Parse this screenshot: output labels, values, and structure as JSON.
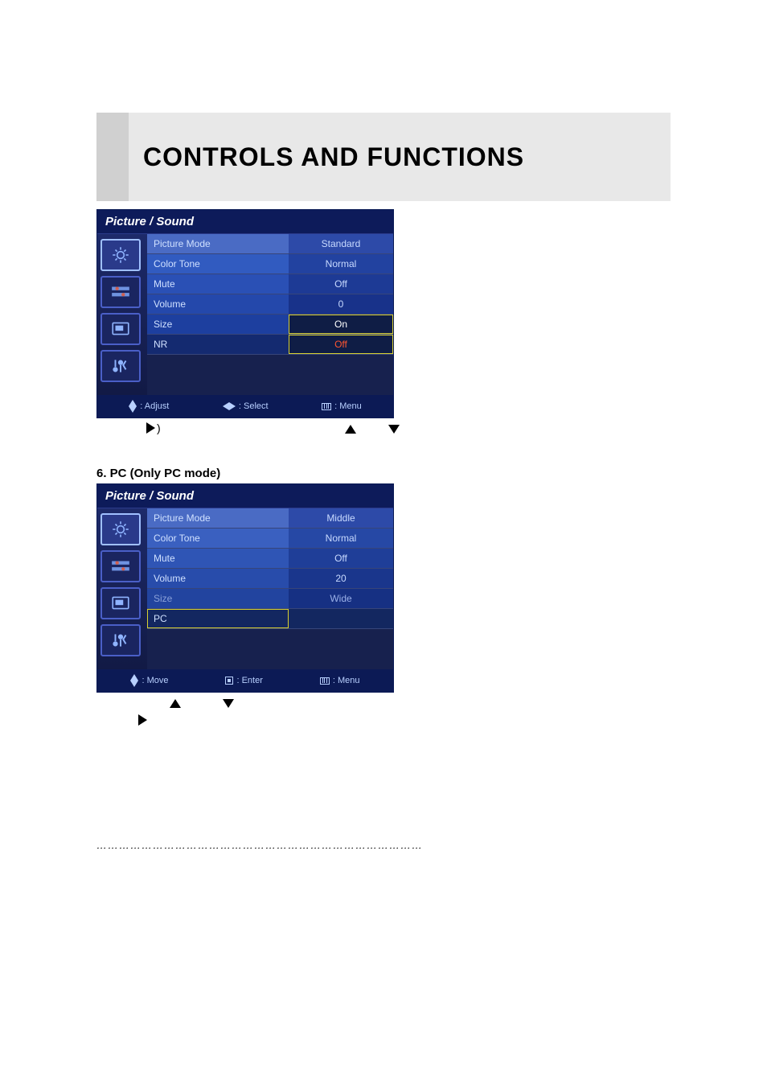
{
  "page": {
    "title": "CONTROLS AND FUNCTIONS",
    "subheading": "6. PC (Only PC mode)",
    "instruction_after_osd1": ")",
    "instructions2_line1a": " ",
    "instructions2_line1b": " ",
    "dots": "……………………………………………………………………………"
  },
  "osd1": {
    "title": "Picture / Sound",
    "active_tab_index": 0,
    "rows": [
      {
        "label": "Picture Mode",
        "value": "Standard",
        "label_bg": "#4a6bc4",
        "value_bg": "#2d4aa8",
        "value_color": "#c8daff"
      },
      {
        "label": "Color Tone",
        "value": "Normal",
        "label_bg": "#315bc0",
        "value_bg": "#2242a0",
        "value_color": "#c8daff"
      },
      {
        "label": "Mute",
        "value": "Off",
        "label_bg": "#2a50b5",
        "value_bg": "#1d3a95",
        "value_color": "#c8daff"
      },
      {
        "label": "Volume",
        "value": "0",
        "label_bg": "#2448ab",
        "value_bg": "#18328a",
        "value_color": "#c8daff"
      },
      {
        "label": "Size",
        "value": "On",
        "label_bg": "#1d3f9f",
        "value_bg": "#0f1d45",
        "value_color": "#ffffff",
        "selected": true
      },
      {
        "label": "NR",
        "value": "Off",
        "label_bg": "#142a70",
        "value_bg": "#0f1d45",
        "value_color": "#ff5530",
        "selected": true
      }
    ],
    "footer": [
      {
        "icon": "updown",
        "text": ": Adjust"
      },
      {
        "icon": "leftright",
        "text": ": Select"
      },
      {
        "icon": "menu",
        "text": ": Menu"
      }
    ],
    "colors": {
      "header_bg": "#0d1b5a",
      "body_bg": "#17214e",
      "sidebar_bg": "#17214e",
      "footer_bg": "#0c1a55",
      "select_outline": "#d8d030"
    }
  },
  "osd2": {
    "title": "Picture / Sound",
    "active_tab_index": 0,
    "rows": [
      {
        "label": "Picture Mode",
        "value": "Middle",
        "label_bg": "#4a6bc4",
        "value_bg": "#2d4aa8",
        "value_color": "#c8daff"
      },
      {
        "label": "Color Tone",
        "value": "Normal",
        "label_bg": "#3a60c0",
        "value_bg": "#2648a5",
        "value_color": "#c8daff"
      },
      {
        "label": "Mute",
        "value": "Off",
        "label_bg": "#2f55b5",
        "value_bg": "#1f3e98",
        "value_color": "#c8daff"
      },
      {
        "label": "Volume",
        "value": "20",
        "label_bg": "#284cab",
        "value_bg": "#1a368c",
        "value_color": "#c8daff"
      },
      {
        "label": "Size",
        "value": "Wide",
        "label_bg": "#22449f",
        "value_bg": "#163083",
        "value_color": "#9ab0e8",
        "disabled": true
      },
      {
        "label": "PC",
        "value": "",
        "label_bg": "#132760",
        "value_bg": "#132760",
        "value_color": "#ffffff",
        "selected_label": true
      }
    ],
    "footer": [
      {
        "icon": "updown",
        "text": ": Move"
      },
      {
        "icon": "enter",
        "text": ": Enter"
      },
      {
        "icon": "menu",
        "text": ": Menu"
      }
    ],
    "colors": {
      "header_bg": "#0d1b5a",
      "body_bg": "#17214e",
      "sidebar_bg": "#17214e",
      "footer_bg": "#0c1a55",
      "select_outline": "#d8d030"
    }
  },
  "sidebar_icons": [
    "brightness-icon",
    "bars-icon",
    "screen-icon",
    "tools-icon"
  ]
}
